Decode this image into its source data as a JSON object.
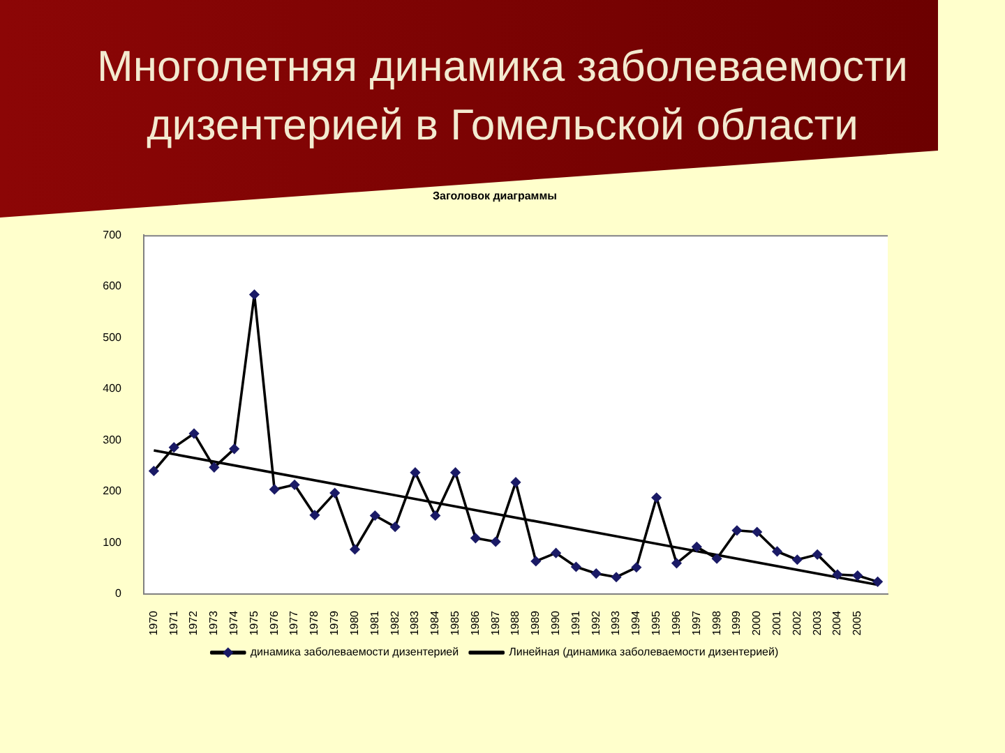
{
  "chart_data": {
    "type": "line",
    "title": "Многолетняя динамика заболеваемости дизентерией в Гомельской области",
    "subtitle": "Заголовок диаграммы",
    "x": [
      1970,
      1971,
      1972,
      1973,
      1974,
      1975,
      1976,
      1977,
      1978,
      1979,
      1980,
      1981,
      1982,
      1983,
      1984,
      1985,
      1986,
      1987,
      1988,
      1989,
      1990,
      1991,
      1992,
      1993,
      1994,
      1995,
      1996,
      1997,
      1998,
      1999,
      2000,
      2001,
      2002,
      2003,
      2004,
      2005,
      2006
    ],
    "series": [
      {
        "name": "динамика заболеваемости дизентерией",
        "color": "#000000",
        "colors": [
          "#1a1a66",
          "#1a1a66",
          "#1a1a66",
          "#1a1a66",
          "#1a1a66",
          "#1a1a66",
          "#1a1a66",
          "#1a1a66",
          "#1a1a66",
          "#1a1a66",
          "#1a1a66",
          "#1a1a66",
          "#1a1a66",
          "#1a1a66",
          "#1a1a66",
          "#1a1a66",
          "#1a1a66",
          "#1a1a66",
          "#1a1a66",
          "#1a1a66",
          "#1a1a66",
          "#1a1a66",
          "#1a1a66",
          "#1a1a66",
          "#1a1a66",
          "#1a1a66",
          "#1a1a66",
          "#1a1a66",
          "#1a1a66",
          "#1a1a66",
          "#1a1a66",
          "#1a1a66",
          "#1a1a66",
          "#1a1a66",
          "#1a1a66",
          "#1a1a66",
          "#1a1a66"
        ],
        "values": [
          240,
          286,
          313,
          247,
          283,
          584,
          204,
          213,
          154,
          197,
          87,
          153,
          131,
          237,
          153,
          237,
          109,
          102,
          218,
          64,
          80,
          53,
          40,
          33,
          52,
          188,
          60,
          92,
          69,
          124,
          121,
          83,
          67,
          77,
          38,
          36,
          24
        ]
      },
      {
        "name": "Линейная (динамика заболеваемости дизентерией)",
        "color": "#000000",
        "marker": "none",
        "x": [
          1970,
          2006
        ],
        "values": [
          280,
          18
        ]
      }
    ],
    "marker": "diamond",
    "xlim": [
      1969.5,
      2006.5
    ],
    "xticks": [
      1970,
      1971,
      1972,
      1973,
      1974,
      1975,
      1976,
      1977,
      1978,
      1979,
      1980,
      1981,
      1982,
      1983,
      1984,
      1985,
      1986,
      1987,
      1988,
      1989,
      1990,
      1991,
      1992,
      1993,
      1994,
      1995,
      1996,
      1997,
      1998,
      1999,
      2000,
      2001,
      2002,
      2003,
      2004,
      2005
    ],
    "ylim": [
      0,
      700
    ],
    "yticks": [
      0,
      100,
      200,
      300,
      400,
      500,
      600,
      700
    ],
    "grid": false,
    "legend": "bottom"
  }
}
